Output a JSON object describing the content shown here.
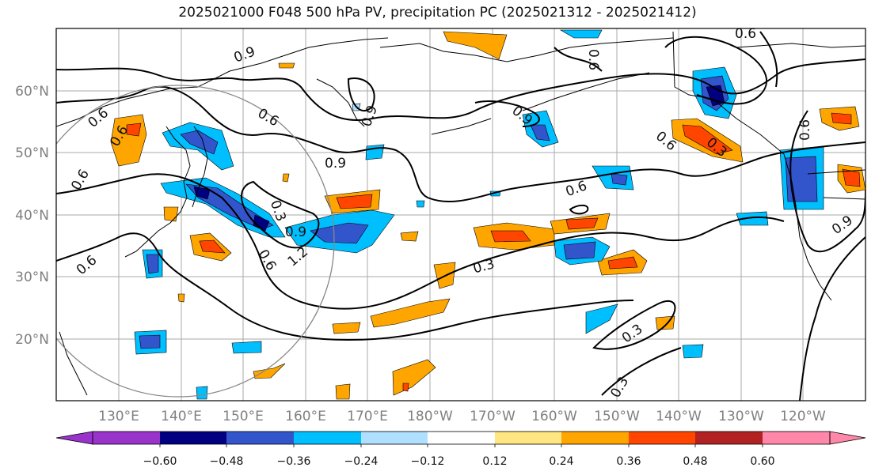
{
  "title": "2025021000 F048 500 hPa PV, precipitation PC (2025021312 - 2025021412)",
  "map": {
    "lon_labels": [
      "130°E",
      "140°E",
      "150°E",
      "160°E",
      "170°E",
      "180°W",
      "170°W",
      "160°W",
      "150°W",
      "140°W",
      "130°W",
      "120°W"
    ],
    "lat_labels": [
      "60°N",
      "50°N",
      "40°N",
      "30°N",
      "20°N"
    ],
    "contour_labels": [
      "0.6",
      "0.6",
      "0.9",
      "0.6",
      "0.9",
      "0.9",
      "0.6",
      "0.9",
      "0.6",
      "0.3",
      "0.9",
      "1.2",
      "0.6",
      "0.3",
      "0.6",
      "0.6",
      "0.3",
      "0.6",
      "0.6",
      "0.9",
      "0.3",
      "0.3"
    ]
  },
  "colorbar": {
    "colors": [
      "#9933cc",
      "#000080",
      "#3355cc",
      "#00bfff",
      "#b0e0ff",
      "#ffffff",
      "#ffe680",
      "#ffa500",
      "#ff4500",
      "#b22222",
      "#ff88aa"
    ],
    "tick_labels": [
      "−0.60",
      "−0.48",
      "−0.36",
      "−0.24",
      "−0.12",
      "0.12",
      "0.24",
      "0.36",
      "0.48",
      "0.60"
    ]
  }
}
